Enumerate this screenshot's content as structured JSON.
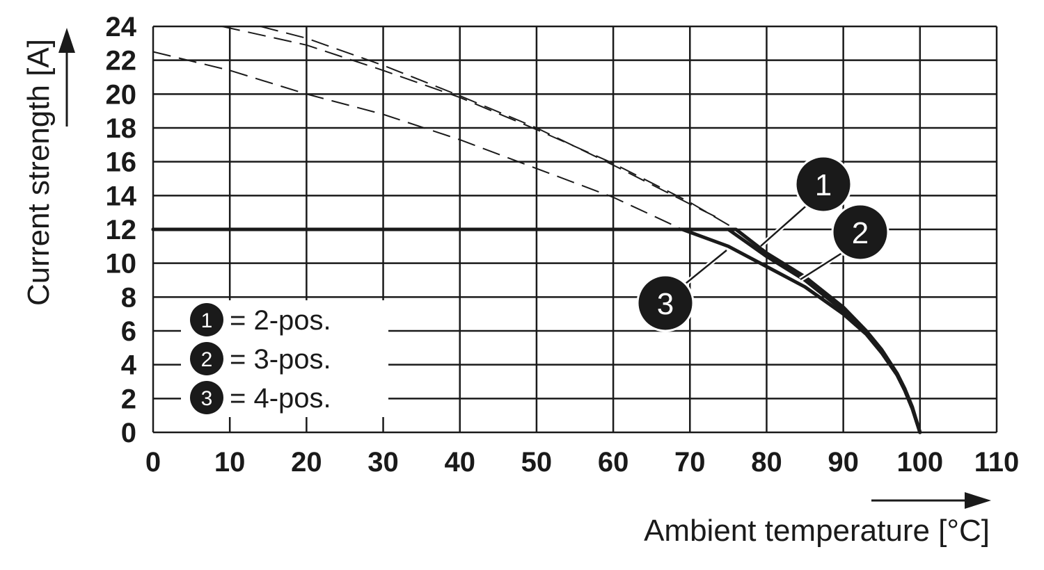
{
  "chart_data": {
    "type": "line",
    "xlabel": "Ambient temperature [°C]",
    "ylabel": "Current strength [A]",
    "xlim": [
      0,
      110
    ],
    "ylim": [
      0,
      24
    ],
    "xticks": [
      0,
      10,
      20,
      30,
      40,
      50,
      60,
      70,
      80,
      90,
      100,
      110
    ],
    "yticks": [
      0,
      2,
      4,
      6,
      8,
      10,
      12,
      14,
      16,
      18,
      20,
      22,
      24
    ],
    "grid": true,
    "legend_position": "bottom-left",
    "colors": {
      "line": "#1a1a1a",
      "marker": "#1a1a1a",
      "background": "#ffffff"
    },
    "series": [
      {
        "marker": "1",
        "legend_label": "= 2-pos.",
        "x": [
          0,
          76,
          80,
          85,
          90,
          93,
          95,
          97,
          98,
          99,
          100
        ],
        "y": [
          12,
          12,
          10.6,
          9.2,
          7.4,
          6.0,
          4.9,
          3.5,
          2.6,
          1.5,
          0
        ],
        "derating_dashed": {
          "x": [
            9,
            20,
            30,
            40,
            50,
            60,
            70,
            76
          ],
          "y": [
            24,
            22.9,
            21.4,
            19.8,
            17.9,
            15.9,
            13.6,
            12.0
          ]
        }
      },
      {
        "marker": "2",
        "legend_label": "= 3-pos.",
        "x": [
          0,
          75,
          80,
          85,
          90,
          93,
          95,
          97,
          98,
          99,
          100
        ],
        "y": [
          12,
          12,
          10.4,
          9.0,
          7.2,
          5.9,
          4.8,
          3.4,
          2.5,
          1.4,
          0
        ],
        "derating_dashed": {
          "x": [
            14,
            20,
            30,
            40,
            50,
            60,
            70,
            74
          ],
          "y": [
            24,
            23.3,
            21.7,
            19.9,
            18.0,
            15.8,
            13.5,
            12.6
          ]
        }
      },
      {
        "marker": "3",
        "legend_label": "= 4-pos.",
        "x": [
          0,
          69,
          75,
          80,
          85,
          90,
          93,
          95,
          97,
          98,
          99,
          100
        ],
        "y": [
          12,
          12,
          11.0,
          9.8,
          8.6,
          7.0,
          5.8,
          4.7,
          3.4,
          2.5,
          1.4,
          0
        ],
        "derating_dashed": {
          "x": [
            0,
            10,
            20,
            30,
            40,
            50,
            60,
            69
          ],
          "y": [
            22.5,
            21.4,
            20.0,
            18.8,
            17.3,
            15.6,
            13.9,
            12.0
          ]
        }
      }
    ]
  }
}
